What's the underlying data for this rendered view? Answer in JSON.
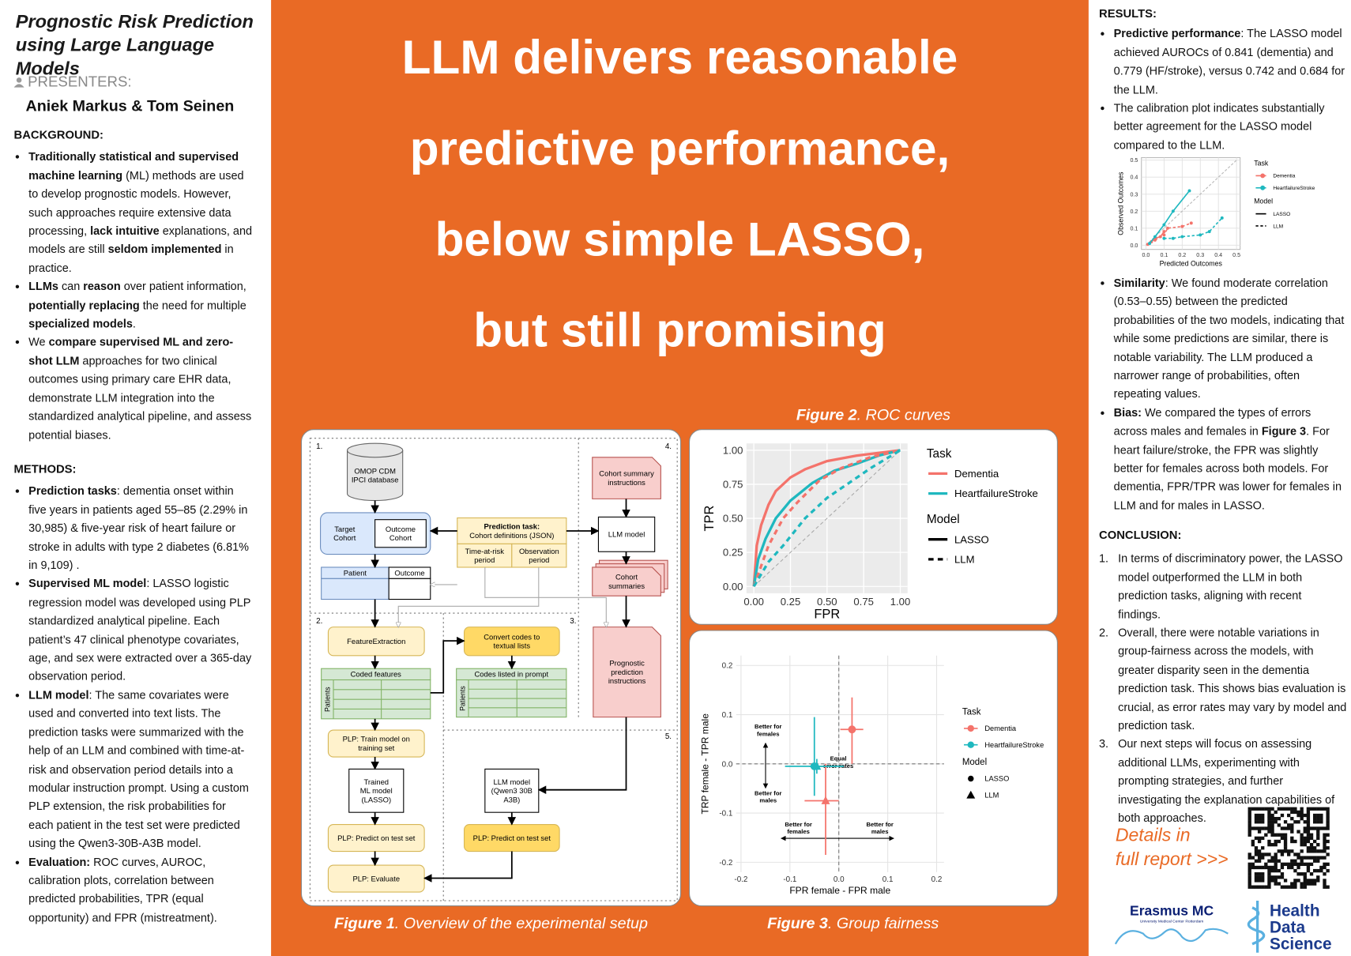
{
  "header": {
    "title": "Prognostic Risk Prediction using Large Language Models",
    "presenters_label": "PRESENTERS:",
    "presenters": "Aniek Markus & Tom Seinen"
  },
  "background": {
    "heading": "BACKGROUND:",
    "items": [
      [
        {
          "text": "Traditionally statistical and supervised machine learning",
          "bold": true
        },
        {
          "text": " (ML) methods are used to develop prognostic models. However, such approaches require extensive data processing, "
        },
        {
          "text": "lack intuitive",
          "bold": true
        },
        {
          "text": " explanations, and models are still "
        },
        {
          "text": "seldom implemented",
          "bold": true
        },
        {
          "text": " in practice."
        }
      ],
      [
        {
          "text": "LLMs",
          "bold": true
        },
        {
          "text": " can "
        },
        {
          "text": "reason",
          "bold": true
        },
        {
          "text": " over patient information, "
        },
        {
          "text": "potentially replacing",
          "bold": true
        },
        {
          "text": " the need for multiple "
        },
        {
          "text": "specialized models",
          "bold": true
        },
        {
          "text": "."
        }
      ],
      [
        {
          "text": "We "
        },
        {
          "text": "compare supervised ML and zero-shot LLM",
          "bold": true
        },
        {
          "text": " approaches for two clinical outcomes using primary care EHR data, demonstrate LLM integration into the standardized analytical pipeline, and assess potential biases."
        }
      ]
    ]
  },
  "methods": {
    "heading": "METHODS:",
    "items": [
      [
        {
          "text": "Prediction tasks",
          "bold": true
        },
        {
          "text": ": dementia onset within five years in patients aged 55–85 (2.29% in 30,985) & five-year risk of heart failure or stroke in adults with type 2 diabetes (6.81% in 9,109) ."
        }
      ],
      [
        {
          "text": "Supervised ML model",
          "bold": true
        },
        {
          "text": ": LASSO logistic regression model was developed using PLP standardized analytical pipeline. Each patient’s 47 clinical phenotype covariates, age, and sex were extracted over a 365-day observation period."
        }
      ],
      [
        {
          "text": "LLM model",
          "bold": true
        },
        {
          "text": ": The same covariates were used and converted into text lists. The prediction tasks were summarized with the help of an LLM and combined with time-at-risk and observation period details into a modular instruction prompt. Using a custom PLP extension, the risk probabilities for each patient in the test set were predicted using the Qwen3-30B-A3B model."
        }
      ],
      [
        {
          "text": "Evaluation:",
          "bold": true
        },
        {
          "text": " ROC curves, AUROC, calibration plots, correlation between predicted probabilities, TPR (equal opportunity) and FPR (mistreatment)."
        }
      ]
    ]
  },
  "headline": [
    "LLM delivers reasonable",
    "predictive performance,",
    "below simple LASSO,",
    "but still promising"
  ],
  "figure1": {
    "caption": {
      "label": "Figure 1",
      "text": ". Overview of the experimental setup"
    },
    "section_numbers": [
      "1.",
      "2.",
      "3.",
      "4.",
      "5."
    ],
    "nodes": [
      [
        "OMOP CDM",
        "IPCI database"
      ],
      [
        "Target",
        "Cohort"
      ],
      [
        "Outcome",
        "Cohort"
      ],
      [
        "Prediction task:",
        "Cohort definitions (JSON)"
      ],
      [
        "Time-at-risk",
        "period"
      ],
      [
        "Observation",
        "period"
      ],
      [
        "LLM model"
      ],
      [
        "Cohort summary",
        "instructions"
      ],
      [
        "Cohort",
        "summaries"
      ],
      [
        "Patient"
      ],
      [
        "Outcome"
      ],
      [
        "FeatureExtraction"
      ],
      [
        "Coded features"
      ],
      [
        "Patients"
      ],
      [
        "Convert codes to",
        "textual lists"
      ],
      [
        "Codes listed in prompt"
      ],
      [
        "Patients"
      ],
      [
        "Prognostic",
        "prediction",
        "instructions"
      ],
      [
        "PLP: Train model on",
        "training set"
      ],
      [
        "Trained",
        "ML model",
        "(LASSO)"
      ],
      [
        "LLM model",
        "(Qwen3 30B",
        "A3B)"
      ],
      [
        "PLP: Predict on test set"
      ],
      [
        "PLP: Predict on test set"
      ],
      [
        "PLP: Evaluate"
      ]
    ]
  },
  "figure2": {
    "type": "line",
    "caption": {
      "label": "Figure 2",
      "text": ". ROC curves"
    },
    "xlabel": "FPR",
    "ylabel": "TPR",
    "xlim": [
      -0.05,
      1.05
    ],
    "ylim": [
      -0.05,
      1.05
    ],
    "xticks": [
      {
        "value": 0,
        "label": "0.00"
      },
      0.25,
      {
        "value": 0.5,
        "label": "0.50"
      },
      0.75,
      {
        "value": 1,
        "label": "1.00"
      }
    ],
    "yticks": [
      {
        "value": 0,
        "label": "0.00"
      },
      0.25,
      {
        "value": 0.5,
        "label": "0.50"
      },
      0.75,
      {
        "value": 1,
        "label": "1.00"
      }
    ],
    "grid": true,
    "legend": {
      "task_title": "Task",
      "tasks": [
        {
          "name": "Dementia",
          "color": "#f4736b"
        },
        {
          "name": "HeartfailureStroke",
          "color": "#1fb8bf"
        }
      ],
      "model_title": "Model",
      "models": [
        {
          "name": "LASSO",
          "line": "solid"
        },
        {
          "name": "LLM",
          "line": "dashed"
        }
      ]
    },
    "series": [
      {
        "task": "Dementia",
        "model": "LASSO",
        "x": [
          0,
          0.02,
          0.05,
          0.1,
          0.15,
          0.25,
          0.35,
          0.5,
          0.7,
          1
        ],
        "y": [
          0,
          0.3,
          0.45,
          0.6,
          0.7,
          0.8,
          0.86,
          0.92,
          0.96,
          1
        ]
      },
      {
        "task": "HeartfailureStroke",
        "model": "LASSO",
        "x": [
          0,
          0.03,
          0.08,
          0.15,
          0.25,
          0.4,
          0.55,
          0.7,
          0.85,
          1
        ],
        "y": [
          0,
          0.2,
          0.35,
          0.5,
          0.63,
          0.76,
          0.85,
          0.9,
          0.96,
          1
        ]
      },
      {
        "task": "Dementia",
        "model": "LLM",
        "x": [
          0,
          0.05,
          0.1,
          0.2,
          0.3,
          0.45,
          0.6,
          0.8,
          1
        ],
        "y": [
          0,
          0.15,
          0.3,
          0.5,
          0.62,
          0.78,
          0.87,
          0.95,
          1
        ]
      },
      {
        "task": "HeartfailureStroke",
        "model": "LLM",
        "x": [
          0,
          0.1,
          0.2,
          0.35,
          0.5,
          0.65,
          0.8,
          1
        ],
        "y": [
          0,
          0.18,
          0.3,
          0.5,
          0.65,
          0.76,
          0.87,
          1
        ]
      }
    ]
  },
  "figure3": {
    "type": "scatter",
    "caption": {
      "label": "Figure 3",
      "text": ". Group fairness"
    },
    "xlabel": "FPR female - FPR male",
    "ylabel": "TRP female - TPR male",
    "xlim": [
      -0.21,
      0.215
    ],
    "ylim": [
      -0.22,
      0.22
    ],
    "xticks": [
      -0.2,
      -0.1,
      {
        "value": 0,
        "label": "0.0"
      },
      0.1,
      0.2
    ],
    "yticks": [
      -0.2,
      -0.1,
      {
        "value": 0,
        "label": "0.0"
      },
      0.1,
      0.2
    ],
    "grid": true,
    "annotations": [
      [
        "Better for",
        "females"
      ],
      [
        "Equal",
        "error rates"
      ],
      [
        "Better for",
        "males"
      ],
      [
        "Better for",
        "females"
      ],
      [
        "Better for",
        "males"
      ]
    ],
    "legend": {
      "task_title": "Task",
      "tasks": [
        {
          "name": "Dementia",
          "color": "#f4736b"
        },
        {
          "name": "HeartfailureStroke",
          "color": "#1fb8bf"
        }
      ],
      "model_title": "Model",
      "models": [
        {
          "name": "LASSO",
          "shape": "circle"
        },
        {
          "name": "LLM",
          "shape": "triangle"
        }
      ]
    },
    "points": [
      {
        "task": "Dementia",
        "model": "LASSO",
        "x": 0.027,
        "y": 0.07,
        "xmin": 0.003,
        "xmax": 0.05,
        "ymin": 0.0,
        "ymax": 0.135
      },
      {
        "task": "Dementia",
        "model": "LLM",
        "x": -0.027,
        "y": -0.075,
        "xmin": -0.07,
        "xmax": 0.0,
        "ymin": -0.185,
        "ymax": 0.0
      },
      {
        "task": "HeartfailureStroke",
        "model": "LASSO",
        "x": -0.05,
        "y": -0.005,
        "xmin": -0.11,
        "xmax": 0.01,
        "ymin": -0.065,
        "ymax": 0.095
      },
      {
        "task": "HeartfailureStroke",
        "model": "LLM",
        "x": -0.045,
        "y": -0.005,
        "xmin": -0.06,
        "xmax": -0.03,
        "ymin": -0.02,
        "ymax": 0.01
      }
    ]
  },
  "results": {
    "heading": "RESULTS:",
    "items": [
      [
        {
          "text": "Predictive performance",
          "bold": true
        },
        {
          "text": ": The LASSO model achieved AUROCs of 0.841 (dementia) and 0.779 (HF/stroke), versus 0.742 and 0.684 for the LLM."
        }
      ],
      [
        {
          "text": "The calibration plot indicates substantially better agreement for the LASSO model compared to the LLM."
        }
      ]
    ],
    "items_after": [
      [
        {
          "text": "Similarity",
          "bold": true
        },
        {
          "text": ": We found moderate correlation (0.53–0.55) between the predicted probabilities of the two models, indicating that while some predictions are similar, there is notable variability. The LLM produced a narrower range of probabilities, often repeating values."
        }
      ],
      [
        {
          "text": "Bias:",
          "bold": true
        },
        {
          "text": " We compared the types of errors across males and females in "
        },
        {
          "text": "Figure 3",
          "bold": true
        },
        {
          "text": ". For heart failure/stroke, the FPR was slightly better for females across both models. For dementia, FPR/TPR was lower for females in LLM and for males in LASSO."
        }
      ]
    ]
  },
  "calibration": {
    "type": "line",
    "xlabel": "Predicted Outcomes",
    "ylabel": "Observed Outcomes",
    "xlim": [
      -0.025,
      0.52
    ],
    "ylim": [
      -0.025,
      0.515
    ],
    "xticks": [
      {
        "value": 0,
        "label": "0.0"
      },
      0.1,
      0.2,
      0.3,
      0.4,
      0.5
    ],
    "yticks": [
      {
        "value": 0,
        "label": "0.0"
      },
      0.1,
      0.2,
      0.3,
      0.4,
      0.5
    ],
    "grid": true,
    "legend": {
      "task_title": "Task",
      "tasks": [
        {
          "name": "Dementia",
          "color": "#f4736b"
        },
        {
          "name": "HeartfailureStroke",
          "color": "#1fb8bf"
        }
      ],
      "model_title": "Model",
      "models": [
        {
          "name": "LASSO",
          "line": "solid"
        },
        {
          "name": "LLM",
          "line": "dashed"
        }
      ]
    },
    "series": [
      {
        "task": "Dementia",
        "model": "LASSO",
        "x": [
          0.01,
          0.03,
          0.05,
          0.08,
          0.1
        ],
        "y": [
          0.005,
          0.02,
          0.04,
          0.05,
          0.08
        ]
      },
      {
        "task": "HeartfailureStroke",
        "model": "LASSO",
        "x": [
          0.02,
          0.05,
          0.1,
          0.15,
          0.24
        ],
        "y": [
          0.01,
          0.05,
          0.12,
          0.2,
          0.32
        ]
      },
      {
        "task": "Dementia",
        "model": "LLM",
        "x": [
          0.05,
          0.1,
          0.12,
          0.2,
          0.25
        ],
        "y": [
          0.03,
          0.06,
          0.1,
          0.11,
          0.13
        ]
      },
      {
        "task": "HeartfailureStroke",
        "model": "LLM",
        "x": [
          0.1,
          0.15,
          0.2,
          0.3,
          0.35,
          0.42
        ],
        "y": [
          0.04,
          0.04,
          0.05,
          0.06,
          0.08,
          0.16
        ]
      }
    ]
  },
  "conclusion": {
    "heading": "CONCLUSION:",
    "markers": [
      "1.",
      "2.",
      "3."
    ],
    "items": [
      "In terms of discriminatory power, the LASSO model outperformed the LLM in both prediction tasks, aligning with recent findings.",
      "Overall, there were notable variations in group-fairness across the models, with greater disparity seen in the dementia prediction task. This shows bias evaluation is crucial, as error rates may vary by model and prediction task.",
      "Our next steps will focus on assessing additional LLMs, experimenting with prompting strategies, and further investigating the explanation capabilities of both approaches."
    ]
  },
  "details": [
    "Details in",
    "full report >>>"
  ],
  "logos": {
    "erasmus": "Erasmus MC",
    "erasmus_sub": "University Medical Center Rotterdam",
    "hds": [
      "Health",
      "Data",
      "Science"
    ]
  }
}
